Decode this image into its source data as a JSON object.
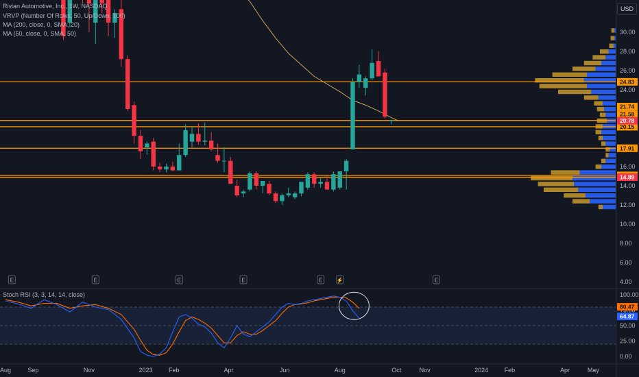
{
  "chart_data": {
    "type": "candlestick",
    "title": "Rivian Automotive, Inc., 1W, NASDAQ",
    "legend": [
      "VRVP (Number Of Rows, 50, Up/Down, 100)",
      "MA (200, close, 0, SMA, 20)",
      "MA (50, close, 0, SMA, 50)"
    ],
    "currency": "USD",
    "colors": {
      "up": "#26a69a",
      "down": "#f23645",
      "ma": "#c8a45c",
      "hline": "#ff9800",
      "vp_up": "#2962ff",
      "vp_down": "#c99a2e"
    },
    "y_ticks": [
      "30.00",
      "28.00",
      "26.00",
      "24.00",
      "22.00",
      "20.00",
      "18.00",
      "16.00",
      "14.00",
      "12.00",
      "10.00",
      "8.00",
      "6.00",
      "4.00"
    ],
    "x_ticks": [
      {
        "label": "Aug",
        "t": 0
      },
      {
        "label": "Sep",
        "t": 4.3
      },
      {
        "label": "Nov",
        "t": 13
      },
      {
        "label": "2023",
        "t": 21.8
      },
      {
        "label": "Feb",
        "t": 26.2
      },
      {
        "label": "Apr",
        "t": 34.7
      },
      {
        "label": "Jun",
        "t": 43.4
      },
      {
        "label": "Aug",
        "t": 52
      },
      {
        "label": "Oct",
        "t": 60.8
      },
      {
        "label": "Nov",
        "t": 65.2
      },
      {
        "label": "2024",
        "t": 74
      },
      {
        "label": "Feb",
        "t": 78.4
      },
      {
        "label": "Apr",
        "t": 87
      },
      {
        "label": "May",
        "t": 91.4
      }
    ],
    "candles": [
      {
        "t": 5,
        "o": 40,
        "h": 45,
        "l": 36,
        "c": 41
      },
      {
        "t": 6,
        "o": 41,
        "h": 44,
        "l": 37,
        "c": 42
      },
      {
        "t": 7,
        "o": 42,
        "h": 46,
        "l": 38,
        "c": 40
      },
      {
        "t": 8,
        "o": 38,
        "h": 40,
        "l": 34,
        "c": 36
      },
      {
        "t": 9,
        "o": 36,
        "h": 38,
        "l": 29.2,
        "c": 29.6
      },
      {
        "t": 10,
        "o": 31,
        "h": 42,
        "l": 30.5,
        "c": 40
      },
      {
        "t": 11,
        "o": 40,
        "h": 44,
        "l": 35,
        "c": 37
      },
      {
        "t": 12,
        "o": 37,
        "h": 40,
        "l": 33,
        "c": 34
      },
      {
        "t": 13,
        "o": 34,
        "h": 38,
        "l": 30,
        "c": 33
      },
      {
        "t": 14,
        "o": 31,
        "h": 36,
        "l": 28.8,
        "c": 35
      },
      {
        "t": 15,
        "o": 35,
        "h": 37,
        "l": 32,
        "c": 33
      },
      {
        "t": 16,
        "o": 33.6,
        "h": 34.8,
        "l": 29.6,
        "c": 31
      },
      {
        "t": 17,
        "o": 31,
        "h": 32.4,
        "l": 29.4,
        "c": 32
      },
      {
        "t": 18,
        "o": 32.4,
        "h": 33.6,
        "l": 26.4,
        "c": 27.2
      },
      {
        "t": 19,
        "o": 27.2,
        "h": 27.6,
        "l": 21.8,
        "c": 22
      },
      {
        "t": 20,
        "o": 22.4,
        "h": 22.8,
        "l": 18.4,
        "c": 19.2
      },
      {
        "t": 21,
        "o": 19.2,
        "h": 19.8,
        "l": 16.8,
        "c": 17.6
      },
      {
        "t": 22,
        "o": 18,
        "h": 18.6,
        "l": 17.2,
        "c": 18.4
      },
      {
        "t": 23,
        "o": 18.6,
        "h": 19,
        "l": 15.6,
        "c": 16
      },
      {
        "t": 24,
        "o": 16,
        "h": 16.4,
        "l": 15.4,
        "c": 15.7
      },
      {
        "t": 25,
        "o": 15.7,
        "h": 16.3,
        "l": 15.4,
        "c": 16
      },
      {
        "t": 26,
        "o": 16,
        "h": 16.5,
        "l": 15.5,
        "c": 15.6
      },
      {
        "t": 27,
        "o": 15.6,
        "h": 18.4,
        "l": 15.6,
        "c": 17.2
      },
      {
        "t": 28,
        "o": 17.2,
        "h": 20.4,
        "l": 17,
        "c": 19.8
      },
      {
        "t": 29,
        "o": 18.6,
        "h": 20.2,
        "l": 18,
        "c": 19.4
      },
      {
        "t": 30,
        "o": 19.4,
        "h": 20.5,
        "l": 18.3,
        "c": 18.6
      },
      {
        "t": 31,
        "o": 18.6,
        "h": 20.6,
        "l": 18.2,
        "c": 18.7
      },
      {
        "t": 32,
        "o": 18.7,
        "h": 19.6,
        "l": 17.6,
        "c": 17.8
      },
      {
        "t": 33,
        "o": 17.2,
        "h": 18.4,
        "l": 16.4,
        "c": 16.6
      },
      {
        "t": 34,
        "o": 16.6,
        "h": 18,
        "l": 15.4,
        "c": 16.6
      },
      {
        "t": 35,
        "o": 16.6,
        "h": 17,
        "l": 14.2,
        "c": 14.2
      },
      {
        "t": 36,
        "o": 14,
        "h": 14.6,
        "l": 12.8,
        "c": 13
      },
      {
        "t": 37,
        "o": 13.2,
        "h": 13.6,
        "l": 12.8,
        "c": 13.4
      },
      {
        "t": 38,
        "o": 13.6,
        "h": 15.5,
        "l": 13.4,
        "c": 15.3
      },
      {
        "t": 39,
        "o": 15.3,
        "h": 15.5,
        "l": 13.6,
        "c": 14
      },
      {
        "t": 40,
        "o": 14,
        "h": 14.4,
        "l": 13.2,
        "c": 14.5
      },
      {
        "t": 41,
        "o": 14.2,
        "h": 14.5,
        "l": 13,
        "c": 13.2
      },
      {
        "t": 42,
        "o": 13.2,
        "h": 13.4,
        "l": 12.2,
        "c": 12.4
      },
      {
        "t": 43,
        "o": 12.4,
        "h": 13.2,
        "l": 12,
        "c": 13
      },
      {
        "t": 44,
        "o": 13,
        "h": 13.8,
        "l": 12.8,
        "c": 13.2
      },
      {
        "t": 45,
        "o": 12.8,
        "h": 13.4,
        "l": 12.6,
        "c": 13.2
      },
      {
        "t": 46,
        "o": 13.2,
        "h": 14.4,
        "l": 12.9,
        "c": 14.4
      },
      {
        "t": 47,
        "o": 13.8,
        "h": 15.4,
        "l": 13.6,
        "c": 15.2
      },
      {
        "t": 48,
        "o": 15.2,
        "h": 15.4,
        "l": 13.8,
        "c": 14.2
      },
      {
        "t": 49,
        "o": 14.2,
        "h": 14.8,
        "l": 13.8,
        "c": 14.4
      },
      {
        "t": 50,
        "o": 14.4,
        "h": 15,
        "l": 13.6,
        "c": 13.6
      },
      {
        "t": 51,
        "o": 13.6,
        "h": 15.5,
        "l": 13.4,
        "c": 15.2
      },
      {
        "t": 52,
        "o": 13.8,
        "h": 15.5,
        "l": 13.6,
        "c": 15.5
      },
      {
        "t": 53,
        "o": 15.5,
        "h": 16.8,
        "l": 13.6,
        "c": 16.6
      },
      {
        "t": 54,
        "o": 17.8,
        "h": 25.2,
        "l": 17.8,
        "c": 24.8
      },
      {
        "t": 55,
        "o": 24.8,
        "h": 26.6,
        "l": 24.2,
        "c": 25.6
      },
      {
        "t": 56,
        "o": 24.2,
        "h": 25.4,
        "l": 23.4,
        "c": 25.2
      },
      {
        "t": 57,
        "o": 25.2,
        "h": 28.2,
        "l": 25,
        "c": 26.8
      },
      {
        "t": 58,
        "o": 27,
        "h": 28,
        "l": 25.4,
        "c": 25.4
      },
      {
        "t": 59,
        "o": 25.8,
        "h": 26.2,
        "l": 21,
        "c": 21.2
      },
      {
        "t": 60,
        "o": 20.8,
        "h": 20.9,
        "l": 20.4,
        "c": 20.8
      }
    ],
    "ma_line": [
      {
        "t": 27.5,
        "v": 44.5
      },
      {
        "t": 30,
        "v": 41
      },
      {
        "t": 33,
        "v": 37
      },
      {
        "t": 36,
        "v": 34.6
      },
      {
        "t": 38,
        "v": 33.2
      },
      {
        "t": 40,
        "v": 31.2
      },
      {
        "t": 42,
        "v": 29.4
      },
      {
        "t": 44,
        "v": 27.8
      },
      {
        "t": 46,
        "v": 26.6
      },
      {
        "t": 48,
        "v": 25.4
      },
      {
        "t": 50,
        "v": 24.6
      },
      {
        "t": 52,
        "v": 23.8
      },
      {
        "t": 54,
        "v": 22.9
      },
      {
        "t": 56,
        "v": 22.4
      },
      {
        "t": 58,
        "v": 21.8
      },
      {
        "t": 60,
        "v": 21.1
      },
      {
        "t": 61,
        "v": 20.8
      }
    ],
    "hlines": [
      {
        "v": 24.83,
        "label": "24.83",
        "bg": "#ff9800",
        "fg": "#131722"
      },
      {
        "v": 20.8,
        "label": "Post",
        "bg": "#131722",
        "fg": "#ffffff"
      },
      {
        "v": 20.15,
        "label": "20.15",
        "bg": "#ff9800",
        "fg": "#131722"
      },
      {
        "v": 17.91,
        "label": "17.91",
        "bg": "#ff9800",
        "fg": "#131722"
      },
      {
        "v": 15.08,
        "label": "15.08",
        "bg": "#ff9800",
        "fg": "#131722"
      },
      {
        "v": 14.89,
        "label": "14.89",
        "bg": "#f23645",
        "fg": "#ffffff"
      }
    ],
    "side_labels": [
      {
        "v": 22.25,
        "label": "21.74",
        "bg": "#ff9800",
        "fg": "#131722"
      },
      {
        "v": 21.45,
        "label": "21.58",
        "bg": "#ff9800",
        "fg": "#131722"
      },
      {
        "v": 20.78,
        "label": "20.78",
        "bg": "#f23645",
        "fg": "#ffffff"
      }
    ],
    "volume_profile": [
      {
        "v": 30.2,
        "up": 2,
        "down": 4
      },
      {
        "v": 29.4,
        "up": 2,
        "down": 5
      },
      {
        "v": 28.6,
        "up": 3,
        "down": 6
      },
      {
        "v": 28.0,
        "up": 10,
        "down": 12
      },
      {
        "v": 27.4,
        "up": 14,
        "down": 18
      },
      {
        "v": 26.8,
        "up": 20,
        "down": 24
      },
      {
        "v": 26.2,
        "up": 28,
        "down": 32
      },
      {
        "v": 25.6,
        "up": 40,
        "down": 48
      },
      {
        "v": 25.0,
        "up": 44,
        "down": 68
      },
      {
        "v": 24.4,
        "up": 40,
        "down": 66
      },
      {
        "v": 23.8,
        "up": 34,
        "down": 46
      },
      {
        "v": 23.2,
        "up": 24,
        "down": 20
      },
      {
        "v": 22.6,
        "up": 18,
        "down": 12
      },
      {
        "v": 22.0,
        "up": 16,
        "down": 10
      },
      {
        "v": 21.4,
        "up": 14,
        "down": 8
      },
      {
        "v": 20.8,
        "up": 12,
        "down": 14
      },
      {
        "v": 20.2,
        "up": 18,
        "down": 10
      },
      {
        "v": 19.6,
        "up": 20,
        "down": 8
      },
      {
        "v": 19.0,
        "up": 18,
        "down": 6
      },
      {
        "v": 18.4,
        "up": 14,
        "down": 6
      },
      {
        "v": 17.8,
        "up": 8,
        "down": 6
      },
      {
        "v": 17.2,
        "up": 10,
        "down": 4
      },
      {
        "v": 16.6,
        "up": 14,
        "down": 6
      },
      {
        "v": 16.0,
        "up": 20,
        "down": 8
      },
      {
        "v": 15.4,
        "up": 50,
        "down": 40
      },
      {
        "v": 14.8,
        "up": 60,
        "down": 58
      },
      {
        "v": 14.2,
        "up": 58,
        "down": 50
      },
      {
        "v": 13.6,
        "up": 52,
        "down": 48
      },
      {
        "v": 13.0,
        "up": 42,
        "down": 30
      },
      {
        "v": 12.4,
        "up": 36,
        "down": 24
      },
      {
        "v": 11.8,
        "up": 18,
        "down": 6
      }
    ],
    "rsi": {
      "label": "Stoch RSI (3, 3, 14, 14, close)",
      "ticks": [
        "100.00",
        "75.00",
        "50.00",
        "25.00",
        "0.00"
      ],
      "k_value": "64.87",
      "d_value": "80.47",
      "k": [
        {
          "t": 0,
          "v": 90
        },
        {
          "t": 2,
          "v": 85
        },
        {
          "t": 4,
          "v": 78
        },
        {
          "t": 6,
          "v": 92
        },
        {
          "t": 8,
          "v": 84
        },
        {
          "t": 10,
          "v": 72
        },
        {
          "t": 12,
          "v": 88
        },
        {
          "t": 14,
          "v": 80
        },
        {
          "t": 16,
          "v": 76
        },
        {
          "t": 18,
          "v": 60
        },
        {
          "t": 20,
          "v": 30
        },
        {
          "t": 21,
          "v": 8
        },
        {
          "t": 22,
          "v": 2
        },
        {
          "t": 23,
          "v": 0
        },
        {
          "t": 24,
          "v": 4
        },
        {
          "t": 25,
          "v": 14
        },
        {
          "t": 26,
          "v": 40
        },
        {
          "t": 27,
          "v": 64
        },
        {
          "t": 28,
          "v": 68
        },
        {
          "t": 29,
          "v": 62
        },
        {
          "t": 30,
          "v": 52
        },
        {
          "t": 31,
          "v": 48
        },
        {
          "t": 32,
          "v": 38
        },
        {
          "t": 33,
          "v": 22
        },
        {
          "t": 34,
          "v": 14
        },
        {
          "t": 35,
          "v": 30
        },
        {
          "t": 36,
          "v": 50
        },
        {
          "t": 37,
          "v": 36
        },
        {
          "t": 38,
          "v": 32
        },
        {
          "t": 39,
          "v": 40
        },
        {
          "t": 40,
          "v": 48
        },
        {
          "t": 41,
          "v": 56
        },
        {
          "t": 42,
          "v": 68
        },
        {
          "t": 43,
          "v": 80
        },
        {
          "t": 44,
          "v": 86
        },
        {
          "t": 45,
          "v": 84
        },
        {
          "t": 46,
          "v": 86
        },
        {
          "t": 47,
          "v": 90
        },
        {
          "t": 48,
          "v": 92
        },
        {
          "t": 49,
          "v": 94
        },
        {
          "t": 50,
          "v": 96
        },
        {
          "t": 51,
          "v": 98
        },
        {
          "t": 52,
          "v": 96
        },
        {
          "t": 53,
          "v": 90
        },
        {
          "t": 54,
          "v": 74
        },
        {
          "t": 55,
          "v": 62
        }
      ],
      "d": [
        {
          "t": 0,
          "v": 92
        },
        {
          "t": 2,
          "v": 88
        },
        {
          "t": 4,
          "v": 82
        },
        {
          "t": 6,
          "v": 86
        },
        {
          "t": 8,
          "v": 86
        },
        {
          "t": 10,
          "v": 78
        },
        {
          "t": 12,
          "v": 82
        },
        {
          "t": 14,
          "v": 84
        },
        {
          "t": 16,
          "v": 78
        },
        {
          "t": 18,
          "v": 68
        },
        {
          "t": 20,
          "v": 44
        },
        {
          "t": 21,
          "v": 26
        },
        {
          "t": 22,
          "v": 10
        },
        {
          "t": 23,
          "v": 3
        },
        {
          "t": 24,
          "v": 2
        },
        {
          "t": 25,
          "v": 6
        },
        {
          "t": 26,
          "v": 20
        },
        {
          "t": 27,
          "v": 40
        },
        {
          "t": 28,
          "v": 58
        },
        {
          "t": 29,
          "v": 64
        },
        {
          "t": 30,
          "v": 60
        },
        {
          "t": 31,
          "v": 54
        },
        {
          "t": 32,
          "v": 46
        },
        {
          "t": 33,
          "v": 34
        },
        {
          "t": 34,
          "v": 22
        },
        {
          "t": 35,
          "v": 22
        },
        {
          "t": 36,
          "v": 34
        },
        {
          "t": 37,
          "v": 40
        },
        {
          "t": 38,
          "v": 36
        },
        {
          "t": 39,
          "v": 36
        },
        {
          "t": 40,
          "v": 42
        },
        {
          "t": 41,
          "v": 50
        },
        {
          "t": 42,
          "v": 58
        },
        {
          "t": 43,
          "v": 70
        },
        {
          "t": 44,
          "v": 80
        },
        {
          "t": 45,
          "v": 84
        },
        {
          "t": 46,
          "v": 85
        },
        {
          "t": 47,
          "v": 87
        },
        {
          "t": 48,
          "v": 90
        },
        {
          "t": 49,
          "v": 92
        },
        {
          "t": 50,
          "v": 94
        },
        {
          "t": 51,
          "v": 96
        },
        {
          "t": 52,
          "v": 96
        },
        {
          "t": 53,
          "v": 95
        },
        {
          "t": 54,
          "v": 88
        },
        {
          "t": 55,
          "v": 78
        }
      ]
    },
    "events": [
      {
        "t": 1,
        "label": "E"
      },
      {
        "t": 14,
        "label": "E"
      },
      {
        "t": 27,
        "label": "E"
      },
      {
        "t": 37,
        "label": "E"
      },
      {
        "t": 49,
        "label": "E"
      },
      {
        "t": 52,
        "label": "⚡"
      },
      {
        "t": 67,
        "label": "E"
      }
    ]
  }
}
